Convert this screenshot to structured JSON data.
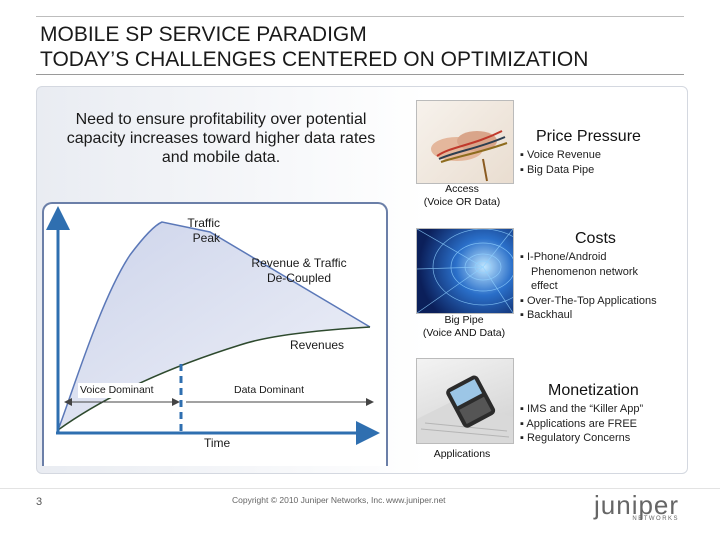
{
  "slide": {
    "title_line1": "MOBILE SP SERVICE PARADIGM",
    "title_line2": "TODAY’S CHALLENGES CENTERED ON OPTIMIZATION",
    "page_number": "3",
    "copyright": "Copyright © 2010 Juniper Networks, Inc.",
    "url": "www.juniper.net"
  },
  "need_text": "Need to ensure profitability over potential capacity increases toward higher data rates and mobile data.",
  "diagram": {
    "traffic_peak_line1": "Traffic",
    "traffic_peak_line2": "Peak",
    "revenue_traffic_line1": "Revenue & Traffic",
    "revenue_traffic_line2": "De-Coupled",
    "revenues": "Revenues",
    "voice_dominant": "Voice Dominant",
    "data_dominant": "Data Dominant",
    "time": "Time",
    "colors": {
      "traffic_curve": "#5b78b8",
      "revenue_curve": "#2e4a2e",
      "axis": "#2f6fb0",
      "frame": "#6b7fa8"
    }
  },
  "tiers": [
    {
      "key": "price",
      "heading": "Price Pressure",
      "bullets": [
        "Voice Revenue",
        "Big Data Pipe"
      ],
      "caption_line1": "Access",
      "caption_line2": "(Voice OR Data)",
      "image_icon": "hands-with-cables-photo"
    },
    {
      "key": "costs",
      "heading": "Costs",
      "bullets": [
        "I-Phone/Android",
        "Phenomenon network",
        "effect",
        "Over-The-Top Applications",
        "Backhaul"
      ],
      "caption_line1": "Big Pipe",
      "caption_line2": "(Voice AND Data)",
      "image_icon": "blue-data-tunnel-photo"
    },
    {
      "key": "monetization",
      "heading": "Monetization",
      "bullets": [
        "IMS and the “Killer App”",
        "Applications are FREE",
        "Regulatory Concerns"
      ],
      "caption_line1": "Applications",
      "caption_line2": "",
      "image_icon": "smartphone-on-laptop-photo"
    }
  ],
  "logo_text": "JUNIPER",
  "logo_subtext": "NETWORKS"
}
